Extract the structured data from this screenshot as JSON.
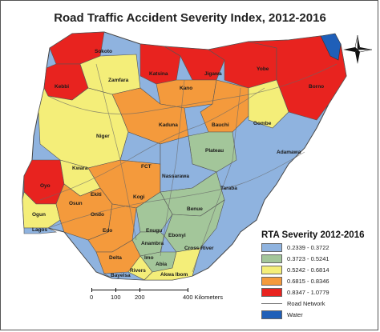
{
  "title": "Road Traffic Accident Severity Index, 2012-2016",
  "legend": {
    "title": "RTA Severity 2012-2016",
    "classes": [
      {
        "range": "0.2339 - 0.3722",
        "color": "#8fb3df"
      },
      {
        "range": "0.3723 - 0.5241",
        "color": "#a3c69a"
      },
      {
        "range": "0.5242 - 0.6814",
        "color": "#f4ee79"
      },
      {
        "range": "0.6815 - 0.8346",
        "color": "#f49a3c"
      },
      {
        "range": "0.8347 - 1.0779",
        "color": "#e8231f"
      }
    ],
    "road_network": "Road Network",
    "water": "Water",
    "water_color": "#1f5fb8"
  },
  "scale_bar": {
    "labels": [
      "0",
      "100",
      "200",
      "400 Kilometers"
    ]
  },
  "north_arrow": "compass-rose",
  "states": [
    "Sokoto",
    "Zamfara",
    "Kebbi",
    "Katsina",
    "Jigawa",
    "Yobe",
    "Borno",
    "Kano",
    "Kaduna",
    "Bauchi",
    "Gombe",
    "Adamawa",
    "Niger",
    "Plateau",
    "Kwara",
    "FCT",
    "Nassarawa",
    "Taraba",
    "Oyo",
    "Ekiti",
    "Kogi",
    "Benue",
    "Osun",
    "Ondo",
    "Ogun",
    "Lagos",
    "Edo",
    "Enugu",
    "Ebonyi",
    "Anambra",
    "Cross River",
    "Delta",
    "Imo",
    "Abia",
    "Rivers",
    "Akwa Ibom",
    "Bayelsa"
  ]
}
